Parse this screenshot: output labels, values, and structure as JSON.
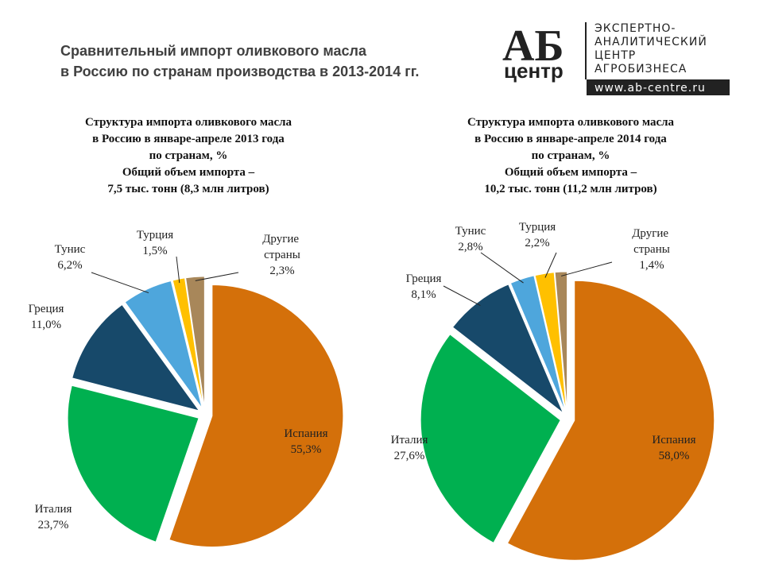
{
  "header": {
    "title": [
      "Сравнительный импорт оливкового масла",
      "в Россию по странам производства в 2013-2014 гг."
    ],
    "logo": {
      "mark": "АБ",
      "word": "центр",
      "lines": [
        "ЭКСПЕРТНО-",
        "АНАЛИТИЧЕСКИЙ",
        "ЦЕНТР",
        "АГРОБИЗНЕСА"
      ],
      "url": "www.ab-centre.ru"
    }
  },
  "chart_data": [
    {
      "type": "pie",
      "title": [
        "Структура импорта оливкового масла",
        "в Россию в январе-апреле 2013 года",
        "по странам, %",
        "Общий объем импорта –",
        "7,5 тыс. тонн (8,3 млн литров)"
      ],
      "categories": [
        "Испания",
        "Италия",
        "Греция",
        "Тунис",
        "Турция",
        "Другие страны"
      ],
      "values": [
        55.3,
        23.7,
        11.0,
        6.2,
        1.5,
        2.3
      ],
      "value_labels": [
        "55,3%",
        "23,7%",
        "11,0%",
        "6,2%",
        "1,5%",
        "2,3%"
      ],
      "colors": [
        "#d4700a",
        "#00b050",
        "#17496a",
        "#4ea6dc",
        "#ffc000",
        "#a8875a"
      ]
    },
    {
      "type": "pie",
      "title": [
        "Структура импорта оливкового масла",
        "в Россию в январе-апреле 2014 года",
        "по странам, %",
        "Общий объем импорта –",
        "10,2 тыс. тонн (11,2 млн литров)"
      ],
      "categories": [
        "Испания",
        "Италия",
        "Греция",
        "Тунис",
        "Турция",
        "Другие страны"
      ],
      "values": [
        58.0,
        27.6,
        8.1,
        2.8,
        2.2,
        1.4
      ],
      "value_labels": [
        "58,0%",
        "27,6%",
        "8,1%",
        "2,8%",
        "2,2%",
        "1,4%"
      ],
      "colors": [
        "#d4700a",
        "#00b050",
        "#17496a",
        "#4ea6dc",
        "#ffc000",
        "#a8875a"
      ]
    }
  ]
}
